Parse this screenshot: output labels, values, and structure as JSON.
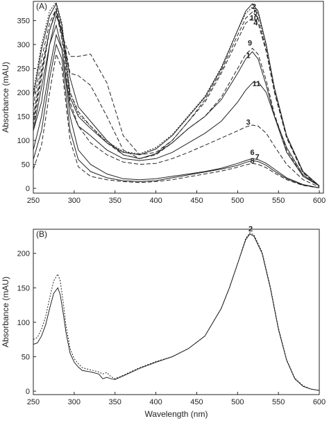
{
  "chart_data": [
    {
      "type": "line",
      "panel_label": "(A)",
      "xlabel": "",
      "ylabel": "Absorbance (mAU)",
      "xlim": [
        250,
        605
      ],
      "ylim": [
        -10,
        390
      ],
      "xticks": [
        250,
        300,
        350,
        400,
        450,
        500,
        550,
        600
      ],
      "yticks": [
        0,
        50,
        100,
        150,
        200,
        250,
        300,
        350
      ],
      "series": [
        {
          "name": "1",
          "label_pos": [
            513,
            272
          ],
          "style": "solid",
          "x": [
            250,
            260,
            270,
            278,
            285,
            295,
            305,
            320,
            340,
            360,
            380,
            400,
            420,
            440,
            460,
            480,
            500,
            510,
            518,
            525,
            535,
            545,
            560,
            580,
            600
          ],
          "y": [
            120,
            180,
            300,
            360,
            330,
            230,
            170,
            140,
            100,
            70,
            62,
            72,
            95,
            125,
            150,
            185,
            240,
            270,
            285,
            270,
            215,
            150,
            75,
            25,
            5
          ]
        },
        {
          "name": "2",
          "label_pos": [
            520,
            374
          ],
          "style": "solid",
          "x": [
            250,
            260,
            270,
            278,
            285,
            295,
            305,
            320,
            340,
            360,
            380,
            400,
            420,
            440,
            460,
            480,
            500,
            510,
            518,
            525,
            535,
            545,
            560,
            580,
            600
          ],
          "y": [
            190,
            290,
            360,
            385,
            340,
            190,
            150,
            125,
            95,
            75,
            70,
            82,
            110,
            150,
            190,
            250,
            330,
            370,
            385,
            370,
            300,
            210,
            110,
            35,
            5
          ]
        },
        {
          "name": "3",
          "label_pos": [
            513,
            133
          ],
          "style": "dash",
          "x": [
            250,
            260,
            270,
            278,
            285,
            295,
            305,
            320,
            340,
            360,
            380,
            400,
            420,
            440,
            460,
            480,
            500,
            510,
            518,
            525,
            535,
            545,
            560,
            580,
            600
          ],
          "y": [
            140,
            240,
            330,
            370,
            310,
            180,
            130,
            95,
            70,
            55,
            50,
            52,
            62,
            75,
            90,
            105,
            120,
            128,
            132,
            130,
            115,
            88,
            50,
            18,
            3
          ]
        },
        {
          "name": "4",
          "label_pos": [
            522,
            340
          ],
          "style": "dash",
          "x": [
            250,
            260,
            270,
            278,
            285,
            295,
            305,
            320,
            340,
            360,
            380,
            400,
            420,
            440,
            460,
            480,
            500,
            510,
            518,
            525,
            535,
            545,
            560,
            580,
            600
          ],
          "y": [
            170,
            270,
            345,
            375,
            320,
            200,
            160,
            130,
            95,
            70,
            62,
            72,
            100,
            140,
            180,
            240,
            310,
            345,
            355,
            345,
            285,
            200,
            105,
            32,
            5
          ]
        },
        {
          "name": "5",
          "label_pos": [
            522,
            362
          ],
          "style": "dot",
          "x": [
            250,
            260,
            270,
            278,
            285,
            295,
            305,
            320,
            340,
            360,
            380,
            400,
            420,
            440,
            460,
            480,
            500,
            510,
            518,
            525,
            535,
            545,
            560,
            580,
            600
          ],
          "y": [
            200,
            300,
            370,
            388,
            345,
            200,
            155,
            130,
            98,
            77,
            72,
            85,
            112,
            152,
            192,
            252,
            330,
            365,
            378,
            365,
            296,
            206,
            108,
            34,
            5
          ]
        },
        {
          "name": "6",
          "label_pos": [
            518,
            70
          ],
          "style": "solid",
          "x": [
            250,
            260,
            270,
            278,
            285,
            295,
            305,
            320,
            340,
            360,
            380,
            400,
            420,
            440,
            460,
            480,
            500,
            510,
            518,
            525,
            535,
            545,
            560,
            580,
            600
          ],
          "y": [
            80,
            150,
            250,
            320,
            290,
            150,
            80,
            50,
            30,
            20,
            18,
            20,
            25,
            30,
            35,
            42,
            52,
            58,
            62,
            60,
            52,
            40,
            22,
            8,
            1
          ]
        },
        {
          "name": "7",
          "label_pos": [
            524,
            60
          ],
          "style": "solid",
          "x": [
            250,
            260,
            270,
            278,
            285,
            295,
            305,
            320,
            340,
            360,
            380,
            400,
            420,
            440,
            460,
            480,
            500,
            510,
            518,
            525,
            535,
            545,
            560,
            580,
            600
          ],
          "y": [
            60,
            120,
            230,
            300,
            270,
            120,
            60,
            35,
            22,
            16,
            14,
            16,
            22,
            28,
            34,
            40,
            48,
            54,
            58,
            56,
            48,
            36,
            20,
            7,
            1
          ]
        },
        {
          "name": "8",
          "label_pos": [
            518,
            52
          ],
          "style": "dash",
          "x": [
            250,
            260,
            270,
            278,
            285,
            295,
            305,
            320,
            340,
            360,
            380,
            400,
            420,
            440,
            460,
            480,
            500,
            510,
            518,
            525,
            535,
            545,
            560,
            580,
            600
          ],
          "y": [
            40,
            90,
            200,
            280,
            250,
            100,
            45,
            25,
            18,
            14,
            12,
            14,
            18,
            24,
            30,
            36,
            44,
            49,
            52,
            50,
            43,
            32,
            18,
            6,
            1
          ]
        },
        {
          "name": "9",
          "label_pos": [
            515,
            298
          ],
          "style": "dash",
          "x": [
            250,
            260,
            270,
            278,
            285,
            295,
            305,
            320,
            340,
            360,
            380,
            400,
            420,
            440,
            460,
            480,
            500,
            510,
            518,
            525,
            535,
            545,
            560,
            580,
            600
          ],
          "y": [
            130,
            230,
            330,
            375,
            330,
            240,
            235,
            215,
            150,
            80,
            62,
            70,
            95,
            125,
            150,
            190,
            250,
            280,
            292,
            280,
            225,
            155,
            80,
            25,
            5
          ]
        },
        {
          "name": "10",
          "label_pos": [
            520,
            350
          ],
          "style": "dash",
          "x": [
            250,
            260,
            270,
            278,
            285,
            295,
            305,
            320,
            340,
            360,
            380,
            400,
            420,
            440,
            460,
            480,
            500,
            510,
            518,
            525,
            535,
            545,
            560,
            580,
            600
          ],
          "y": [
            150,
            250,
            330,
            370,
            320,
            275,
            275,
            280,
            220,
            110,
            70,
            75,
            100,
            140,
            185,
            245,
            320,
            355,
            368,
            355,
            288,
            202,
            106,
            33,
            5
          ]
        },
        {
          "name": "11",
          "label_pos": [
            523,
            213
          ],
          "style": "solid",
          "x": [
            250,
            260,
            270,
            278,
            285,
            295,
            305,
            320,
            340,
            360,
            380,
            400,
            420,
            440,
            460,
            480,
            500,
            510,
            518,
            525,
            535,
            545,
            560,
            580,
            600
          ],
          "y": [
            120,
            210,
            300,
            340,
            290,
            170,
            130,
            110,
            80,
            62,
            58,
            62,
            75,
            95,
            115,
            140,
            180,
            205,
            220,
            222,
            200,
            150,
            85,
            28,
            5
          ]
        }
      ]
    },
    {
      "type": "line",
      "panel_label": "(B)",
      "xlabel": "Wavelength (nm)",
      "ylabel": "Absorbance (mAU)",
      "xlim": [
        250,
        600
      ],
      "ylim": [
        -5,
        235
      ],
      "xticks": [
        250,
        300,
        350,
        400,
        450,
        500,
        550,
        600
      ],
      "yticks": [
        0,
        50,
        100,
        150,
        200
      ],
      "series": [
        {
          "name": "2",
          "label_pos": [
            516,
            232
          ],
          "style": "solid",
          "x": [
            250,
            255,
            260,
            265,
            270,
            275,
            280,
            283,
            287,
            290,
            295,
            300,
            305,
            310,
            320,
            330,
            335,
            340,
            345,
            350,
            360,
            380,
            400,
            420,
            440,
            460,
            480,
            490,
            500,
            510,
            515,
            520,
            530,
            540,
            550,
            560,
            570,
            580,
            590,
            600
          ],
          "y": [
            68,
            70,
            80,
            96,
            120,
            142,
            150,
            140,
            110,
            85,
            55,
            42,
            35,
            30,
            28,
            25,
            18,
            20,
            18,
            17,
            22,
            33,
            42,
            50,
            62,
            80,
            120,
            150,
            185,
            220,
            228,
            225,
            200,
            150,
            90,
            45,
            18,
            7,
            3,
            1
          ]
        },
        {
          "name": "",
          "style": "dot",
          "x": [
            250,
            255,
            260,
            265,
            270,
            275,
            280,
            283,
            287,
            290,
            295,
            300,
            305,
            310,
            320,
            330,
            335,
            340,
            345,
            350,
            360,
            380,
            400,
            420,
            440,
            460,
            480,
            490,
            500,
            510,
            515,
            520,
            530,
            540,
            550,
            560,
            570,
            580,
            590,
            600
          ],
          "y": [
            75,
            78,
            90,
            108,
            135,
            160,
            170,
            160,
            125,
            95,
            62,
            47,
            40,
            34,
            31,
            28,
            25,
            27,
            21,
            18,
            23,
            34,
            43,
            50,
            62,
            80,
            120,
            150,
            185,
            222,
            230,
            227,
            202,
            152,
            92,
            46,
            19,
            8,
            3,
            1
          ]
        }
      ]
    }
  ]
}
